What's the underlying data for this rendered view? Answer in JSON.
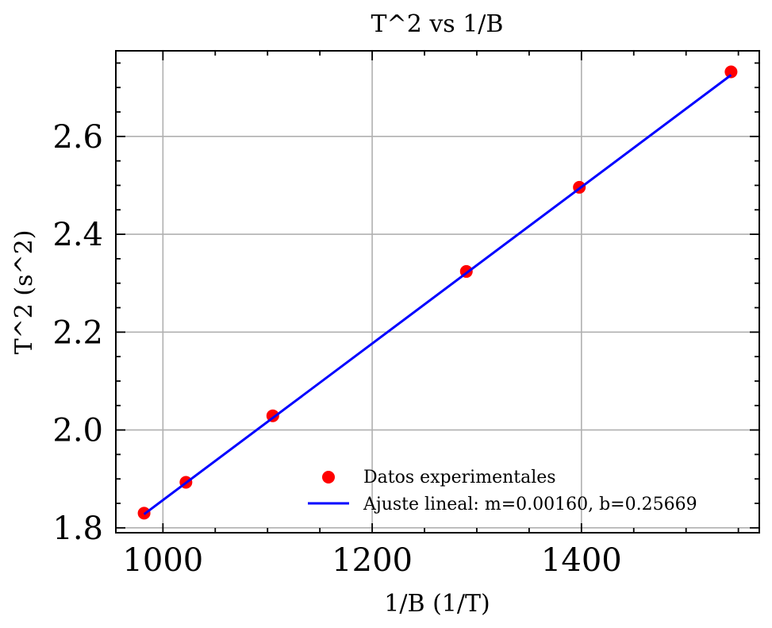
{
  "chart_data": {
    "type": "scatter",
    "title": "T^2 vs 1/B",
    "xlabel": "1/B (1/T)",
    "ylabel": "T^2 (s^2)",
    "xlim": [
      955,
      1570
    ],
    "ylim": [
      1.79,
      2.775
    ],
    "xticks": [
      1000,
      1200,
      1400
    ],
    "yticks": [
      1.8,
      2.0,
      2.2,
      2.4,
      2.6
    ],
    "xtick_labels": [
      "1000",
      "1200",
      "1400"
    ],
    "ytick_labels": [
      "1.8",
      "2.0",
      "2.2",
      "2.4",
      "2.6"
    ],
    "grid": true,
    "legend_position": "bottom-right",
    "series": [
      {
        "name": "Datos experimentales",
        "kind": "scatter",
        "color": "#ff0000",
        "x": [
          982,
          1022,
          1105,
          1290,
          1398,
          1543
        ],
        "y": [
          1.83,
          1.893,
          2.029,
          2.324,
          2.496,
          2.732
        ]
      },
      {
        "name": "Ajuste lineal: m=0.00160, b=0.25669",
        "kind": "line",
        "color": "#0000ff",
        "slope": 0.0016,
        "intercept": 0.25669,
        "x_range": [
          982,
          1543
        ]
      }
    ]
  }
}
